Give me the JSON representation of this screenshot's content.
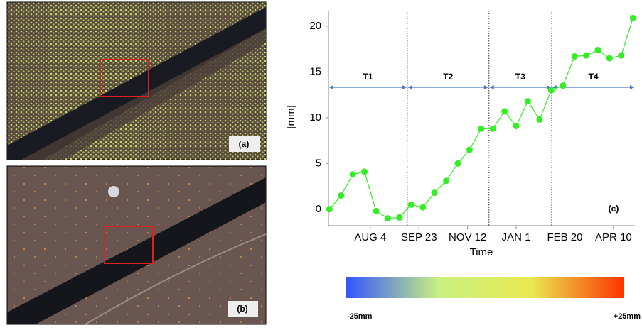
{
  "chart_data": {
    "type": "line",
    "y_label": "[mm]",
    "x_label": "Time",
    "panel_label": "(c)",
    "x": [
      0,
      12,
      24,
      36,
      48,
      60,
      72,
      84,
      96,
      108,
      120,
      132,
      144,
      156,
      168,
      180,
      192,
      204,
      216,
      228,
      240,
      252,
      264,
      276,
      288,
      300,
      312
    ],
    "series": [
      {
        "color": "#33ee22",
        "values": [
          0,
          1.5,
          3.8,
          4.1,
          -0.2,
          -1.0,
          -0.9,
          0.5,
          0.2,
          1.8,
          3.1,
          5.0,
          6.5,
          8.8,
          8.8,
          10.7,
          9.1,
          11.8,
          9.8,
          13.0,
          13.5,
          16.7,
          16.8,
          17.4,
          16.5,
          16.8,
          20.9
        ]
      }
    ],
    "xlim": [
      -1,
      314
    ],
    "ylim": [
      -1.8,
      21.7
    ],
    "xticks": [
      {
        "value": 42,
        "label": "AUG 4"
      },
      {
        "value": 92,
        "label": "SEP 23"
      },
      {
        "value": 142,
        "label": "NOV 12"
      },
      {
        "value": 192,
        "label": "JAN 1"
      },
      {
        "value": 242,
        "label": "FEB 20"
      },
      {
        "value": 292,
        "label": "APR 10"
      }
    ],
    "yticks": [
      0,
      5,
      10,
      15,
      20
    ],
    "periods": [
      {
        "label": "T1",
        "start": -1,
        "end": 80
      },
      {
        "label": "T2",
        "start": 80,
        "end": 164
      },
      {
        "label": "T3",
        "start": 164,
        "end": 228.5
      },
      {
        "label": "T4",
        "start": 228.5,
        "end": 314
      }
    ],
    "period_color": "#4a78c0"
  },
  "images": [
    {
      "label": "(a)"
    },
    {
      "label": "(b)"
    }
  ],
  "colorbar": {
    "colors": [
      "#3355ff",
      "#c8f080",
      "#e8e850",
      "#ff3300"
    ],
    "min_label": "-25mm",
    "max_label": "+25mm"
  }
}
